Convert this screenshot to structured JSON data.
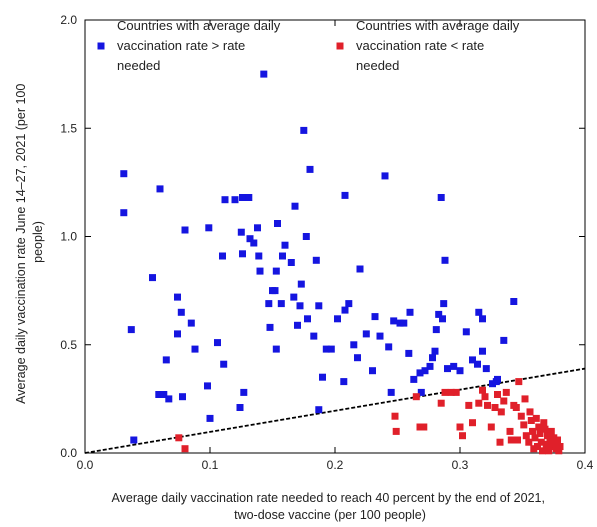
{
  "chart_data": {
    "type": "scatter",
    "title": "",
    "xlabel": [
      "Average daily vaccination rate needed to reach 40 percent by the end of 2021,",
      "two-dose vaccine (per 100 people)"
    ],
    "ylabel": [
      "Average daily vaccination rate June 14–27, 2021 (per 100",
      "people)"
    ],
    "xlim": [
      0,
      0.4
    ],
    "ylim": [
      0,
      2.0
    ],
    "xticks": [
      "0.0",
      "0.1",
      "0.2",
      "0.3",
      "0.4"
    ],
    "yticks": [
      "0.0",
      "0.5",
      "1.0",
      "1.5",
      "2.0"
    ],
    "legend_placement": "top",
    "reference_line": {
      "style": "dashed",
      "color": "#000000",
      "points": [
        [
          0,
          0
        ],
        [
          0.4,
          0.39
        ]
      ]
    },
    "series": [
      {
        "name": [
          "Countries with average daily",
          "vaccination rate > rate",
          "needed"
        ],
        "color": "#1515e0",
        "points": [
          [
            0.031,
            1.29
          ],
          [
            0.031,
            1.11
          ],
          [
            0.037,
            0.57
          ],
          [
            0.039,
            0.06
          ],
          [
            0.054,
            0.81
          ],
          [
            0.06,
            1.22
          ],
          [
            0.059,
            0.27
          ],
          [
            0.063,
            0.27
          ],
          [
            0.065,
            0.43
          ],
          [
            0.067,
            0.25
          ],
          [
            0.074,
            0.72
          ],
          [
            0.074,
            0.55
          ],
          [
            0.077,
            0.65
          ],
          [
            0.078,
            0.26
          ],
          [
            0.08,
            1.03
          ],
          [
            0.085,
            0.6
          ],
          [
            0.088,
            0.48
          ],
          [
            0.098,
            0.31
          ],
          [
            0.099,
            1.04
          ],
          [
            0.1,
            0.16
          ],
          [
            0.106,
            0.51
          ],
          [
            0.11,
            0.91
          ],
          [
            0.111,
            0.41
          ],
          [
            0.112,
            1.17
          ],
          [
            0.12,
            1.17
          ],
          [
            0.124,
            0.21
          ],
          [
            0.125,
            1.02
          ],
          [
            0.126,
            1.18
          ],
          [
            0.126,
            0.92
          ],
          [
            0.127,
            0.28
          ],
          [
            0.131,
            1.18
          ],
          [
            0.132,
            0.99
          ],
          [
            0.135,
            0.97
          ],
          [
            0.138,
            1.04
          ],
          [
            0.139,
            0.91
          ],
          [
            0.14,
            0.84
          ],
          [
            0.143,
            1.75
          ],
          [
            0.147,
            0.69
          ],
          [
            0.148,
            0.58
          ],
          [
            0.15,
            0.75
          ],
          [
            0.152,
            0.75
          ],
          [
            0.153,
            0.48
          ],
          [
            0.153,
            0.84
          ],
          [
            0.154,
            1.06
          ],
          [
            0.157,
            0.69
          ],
          [
            0.158,
            0.91
          ],
          [
            0.16,
            0.96
          ],
          [
            0.165,
            0.88
          ],
          [
            0.167,
            0.72
          ],
          [
            0.168,
            1.14
          ],
          [
            0.17,
            0.59
          ],
          [
            0.172,
            0.68
          ],
          [
            0.173,
            0.78
          ],
          [
            0.175,
            1.49
          ],
          [
            0.177,
            1.0
          ],
          [
            0.178,
            0.62
          ],
          [
            0.18,
            1.31
          ],
          [
            0.183,
            0.54
          ],
          [
            0.185,
            0.89
          ],
          [
            0.187,
            0.2
          ],
          [
            0.187,
            0.68
          ],
          [
            0.19,
            0.35
          ],
          [
            0.193,
            0.48
          ],
          [
            0.197,
            0.48
          ],
          [
            0.202,
            0.62
          ],
          [
            0.207,
            0.33
          ],
          [
            0.208,
            1.19
          ],
          [
            0.208,
            0.66
          ],
          [
            0.211,
            0.69
          ],
          [
            0.215,
            0.5
          ],
          [
            0.218,
            0.44
          ],
          [
            0.22,
            0.85
          ],
          [
            0.225,
            0.55
          ],
          [
            0.23,
            0.38
          ],
          [
            0.232,
            0.63
          ],
          [
            0.236,
            0.54
          ],
          [
            0.24,
            1.28
          ],
          [
            0.243,
            0.49
          ],
          [
            0.245,
            0.28
          ],
          [
            0.247,
            0.61
          ],
          [
            0.252,
            0.6
          ],
          [
            0.255,
            0.6
          ],
          [
            0.259,
            0.46
          ],
          [
            0.26,
            0.65
          ],
          [
            0.263,
            0.34
          ],
          [
            0.268,
            0.37
          ],
          [
            0.269,
            0.28
          ],
          [
            0.272,
            0.38
          ],
          [
            0.276,
            0.4
          ],
          [
            0.278,
            0.44
          ],
          [
            0.28,
            0.47
          ],
          [
            0.281,
            0.57
          ],
          [
            0.283,
            0.64
          ],
          [
            0.285,
            1.18
          ],
          [
            0.286,
            0.62
          ],
          [
            0.287,
            0.69
          ],
          [
            0.288,
            0.89
          ],
          [
            0.29,
            0.39
          ],
          [
            0.295,
            0.4
          ],
          [
            0.3,
            0.38
          ],
          [
            0.305,
            0.56
          ],
          [
            0.31,
            0.43
          ],
          [
            0.314,
            0.41
          ],
          [
            0.315,
            0.65
          ],
          [
            0.318,
            0.62
          ],
          [
            0.318,
            0.47
          ],
          [
            0.321,
            0.39
          ],
          [
            0.326,
            0.32
          ],
          [
            0.329,
            0.33
          ],
          [
            0.33,
            0.34
          ],
          [
            0.335,
            0.52
          ],
          [
            0.343,
            0.7
          ]
        ]
      },
      {
        "name": [
          "Countries with average daily",
          "vaccination rate < rate",
          "needed"
        ],
        "color": "#e0202a",
        "points": [
          [
            0.075,
            0.07
          ],
          [
            0.08,
            0.02
          ],
          [
            0.248,
            0.17
          ],
          [
            0.249,
            0.1
          ],
          [
            0.265,
            0.26
          ],
          [
            0.268,
            0.12
          ],
          [
            0.271,
            0.12
          ],
          [
            0.285,
            0.23
          ],
          [
            0.288,
            0.28
          ],
          [
            0.293,
            0.28
          ],
          [
            0.297,
            0.28
          ],
          [
            0.3,
            0.12
          ],
          [
            0.302,
            0.08
          ],
          [
            0.307,
            0.22
          ],
          [
            0.31,
            0.14
          ],
          [
            0.315,
            0.23
          ],
          [
            0.318,
            0.29
          ],
          [
            0.32,
            0.26
          ],
          [
            0.322,
            0.22
          ],
          [
            0.325,
            0.12
          ],
          [
            0.328,
            0.21
          ],
          [
            0.33,
            0.27
          ],
          [
            0.332,
            0.05
          ],
          [
            0.333,
            0.19
          ],
          [
            0.335,
            0.24
          ],
          [
            0.337,
            0.28
          ],
          [
            0.34,
            0.1
          ],
          [
            0.341,
            0.06
          ],
          [
            0.343,
            0.22
          ],
          [
            0.345,
            0.21
          ],
          [
            0.346,
            0.06
          ],
          [
            0.347,
            0.33
          ],
          [
            0.349,
            0.17
          ],
          [
            0.351,
            0.13
          ],
          [
            0.352,
            0.25
          ],
          [
            0.353,
            0.08
          ],
          [
            0.355,
            0.05
          ],
          [
            0.356,
            0.19
          ],
          [
            0.357,
            0.15
          ],
          [
            0.358,
            0.1
          ],
          [
            0.359,
            0.02
          ],
          [
            0.36,
            0.07
          ],
          [
            0.361,
            0.16
          ],
          [
            0.362,
            0.03
          ],
          [
            0.363,
            0.12
          ],
          [
            0.364,
            0.09
          ],
          [
            0.365,
            0.05
          ],
          [
            0.366,
            0.01
          ],
          [
            0.367,
            0.14
          ],
          [
            0.368,
            0.11
          ],
          [
            0.369,
            0.04
          ],
          [
            0.37,
            0.08
          ],
          [
            0.371,
            0.01
          ],
          [
            0.372,
            0.05
          ],
          [
            0.373,
            0.1
          ],
          [
            0.374,
            0.03
          ],
          [
            0.375,
            0.07
          ],
          [
            0.376,
            0.04
          ],
          [
            0.377,
            0.02
          ],
          [
            0.378,
            0.06
          ],
          [
            0.379,
            0.01
          ],
          [
            0.38,
            0.03
          ]
        ]
      }
    ]
  }
}
